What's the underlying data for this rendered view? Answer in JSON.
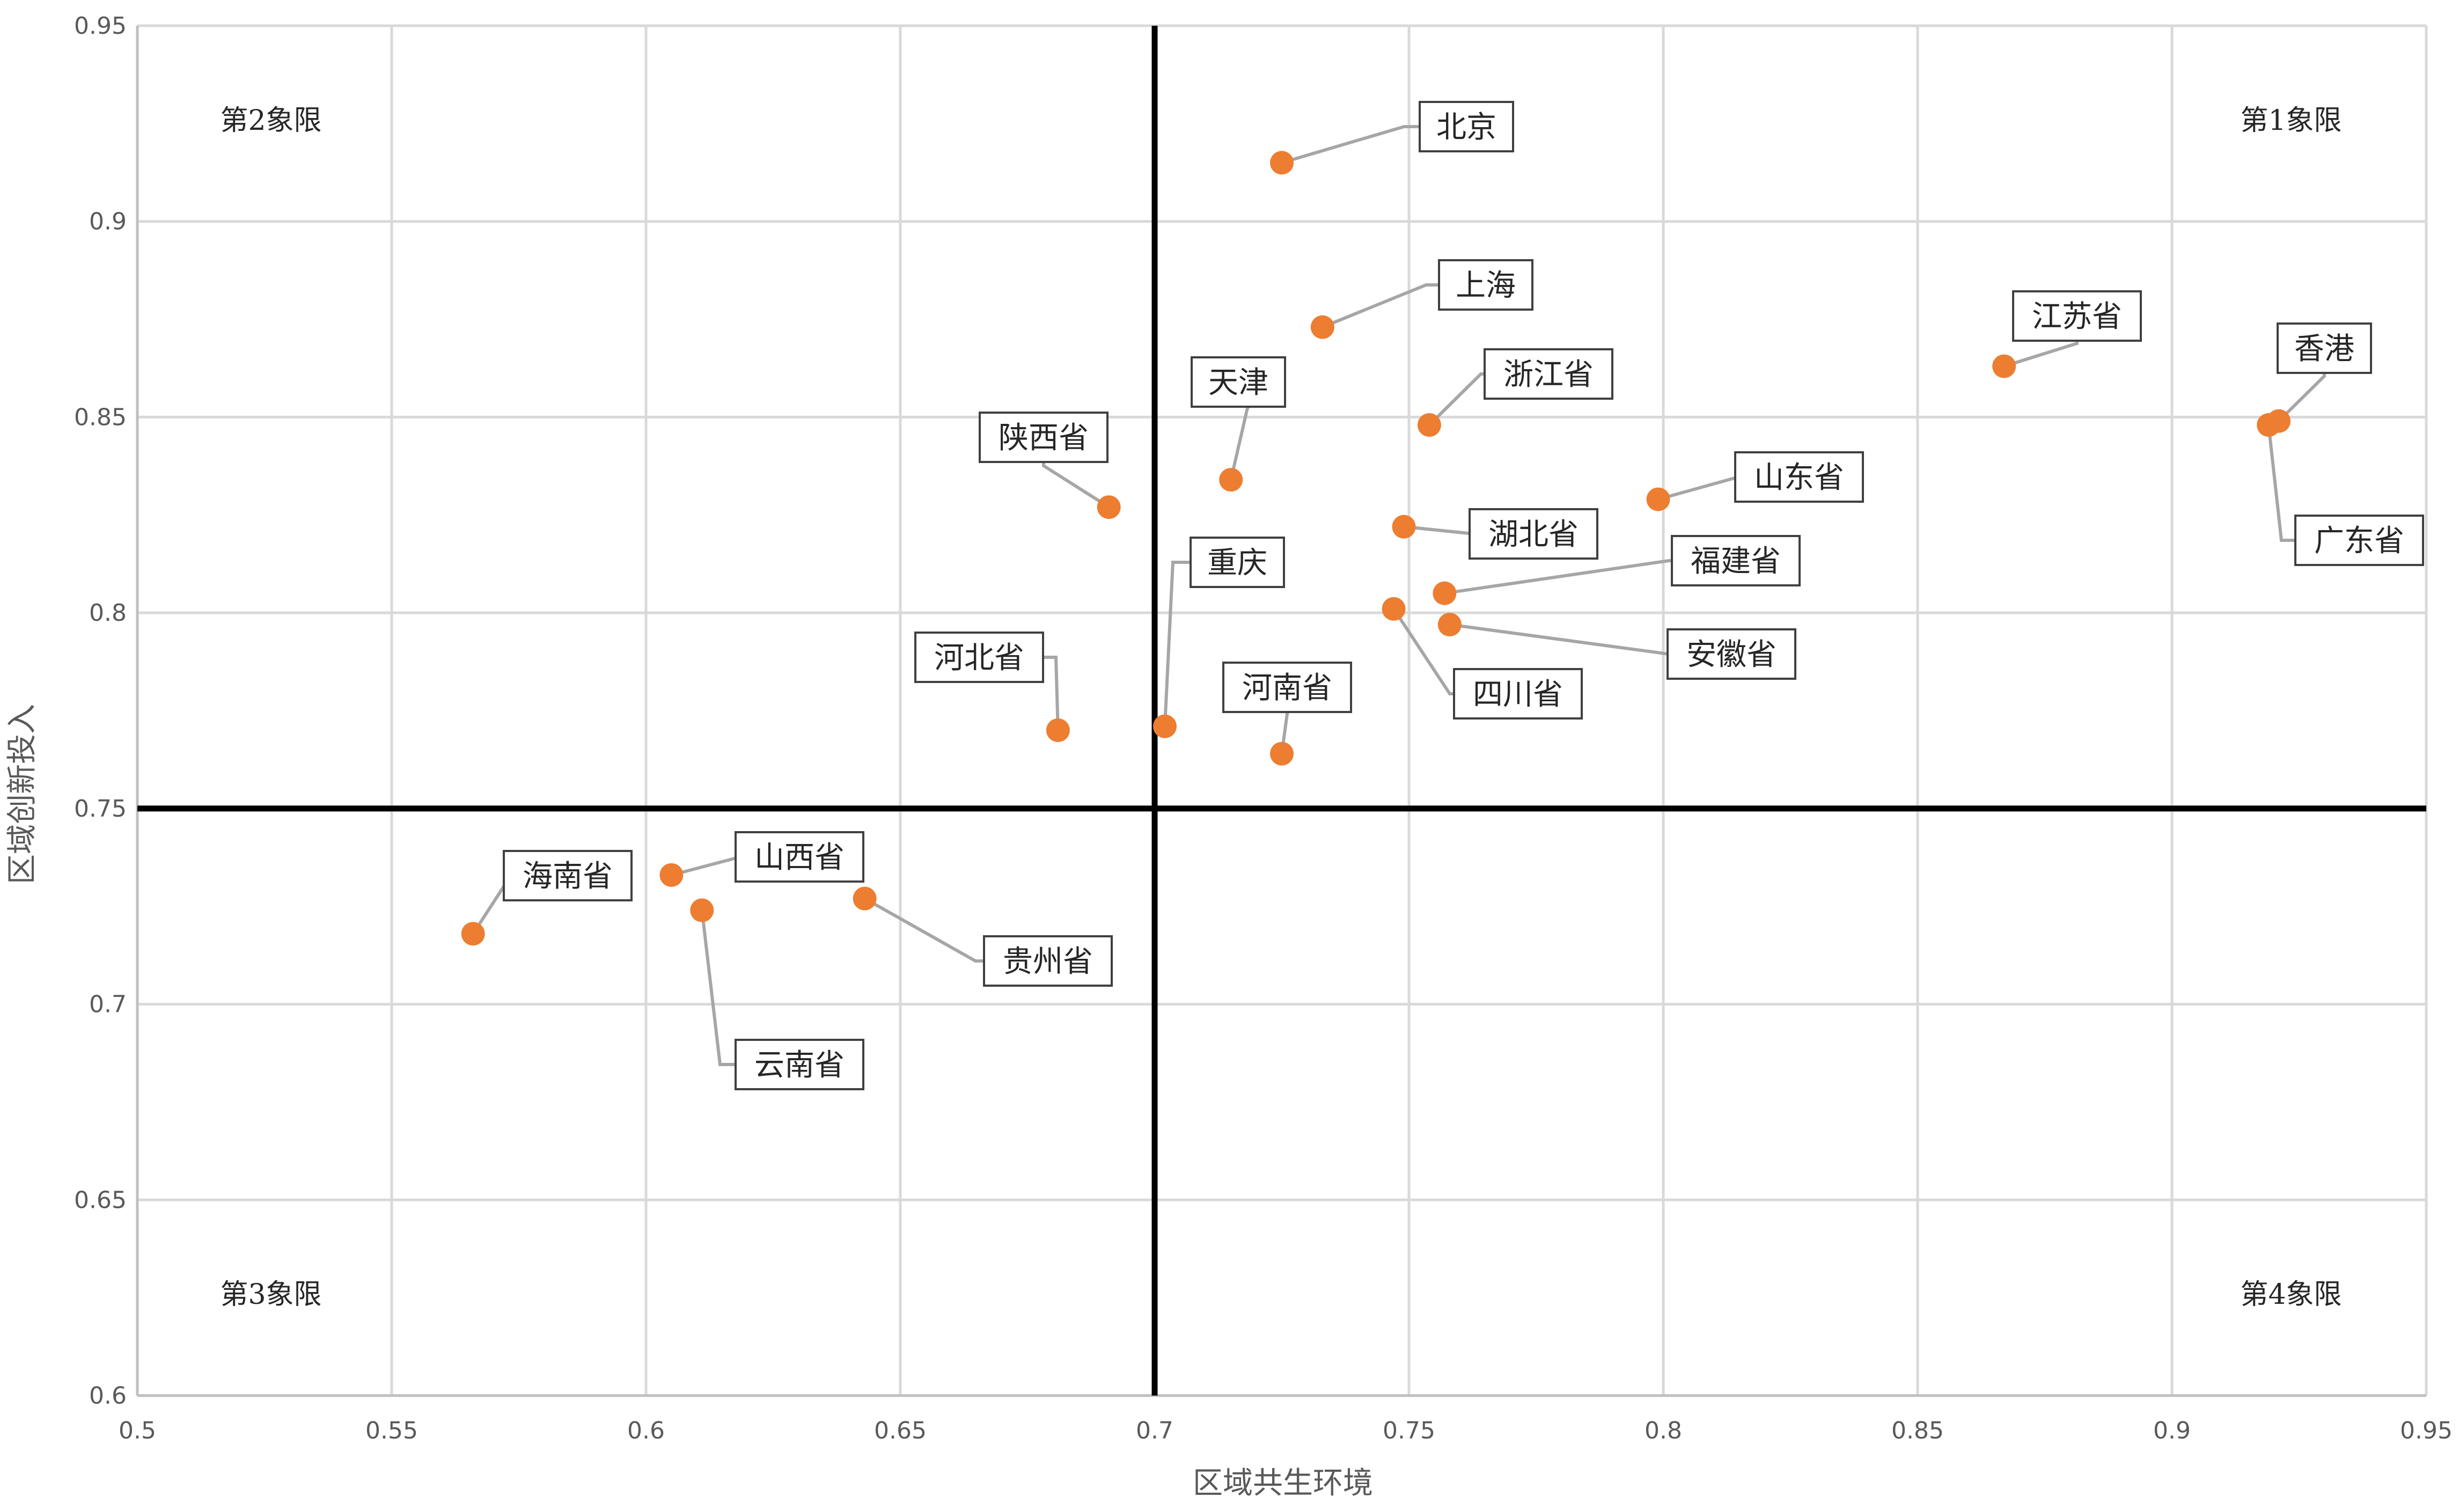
{
  "chart_data": {
    "type": "scatter",
    "xlabel": "区域共生环境",
    "ylabel": "区域创新投入",
    "xlim": [
      0.5,
      0.95
    ],
    "ylim": [
      0.6,
      0.95
    ],
    "xticks": [
      "0.5",
      "0.55",
      "0.6",
      "0.65",
      "0.7",
      "0.75",
      "0.8",
      "0.85",
      "0.9",
      "0.95"
    ],
    "yticks": [
      "0.6",
      "0.65",
      "0.7",
      "0.75",
      "0.8",
      "0.85",
      "0.9",
      "0.95"
    ],
    "grid": true,
    "quadrant_divider": {
      "x": 0.7,
      "y": 0.75
    },
    "quadrant_labels": {
      "q1": "第1象限",
      "q2": "第2象限",
      "q3": "第3象限",
      "q4": "第4象限"
    },
    "colors": {
      "point": "#ED7D31",
      "grid": "#D9D9D9",
      "divider": "#000000",
      "leader": "#A6A6A6"
    },
    "points": [
      {
        "name": "北京",
        "x": 0.725,
        "y": 0.915
      },
      {
        "name": "上海",
        "x": 0.733,
        "y": 0.873
      },
      {
        "name": "天津",
        "x": 0.715,
        "y": 0.834
      },
      {
        "name": "浙江省",
        "x": 0.754,
        "y": 0.848
      },
      {
        "name": "陕西省",
        "x": 0.691,
        "y": 0.827
      },
      {
        "name": "湖北省",
        "x": 0.749,
        "y": 0.822
      },
      {
        "name": "山东省",
        "x": 0.799,
        "y": 0.829
      },
      {
        "name": "江苏省",
        "x": 0.867,
        "y": 0.863
      },
      {
        "name": "香港",
        "x": 0.921,
        "y": 0.849
      },
      {
        "name": "广东省",
        "x": 0.919,
        "y": 0.848
      },
      {
        "name": "福建省",
        "x": 0.757,
        "y": 0.805
      },
      {
        "name": "重庆",
        "x": 0.702,
        "y": 0.771
      },
      {
        "name": "河北省",
        "x": 0.681,
        "y": 0.77
      },
      {
        "name": "安徽省",
        "x": 0.758,
        "y": 0.797
      },
      {
        "name": "四川省",
        "x": 0.747,
        "y": 0.801
      },
      {
        "name": "河南省",
        "x": 0.725,
        "y": 0.764
      },
      {
        "name": "海南省",
        "x": 0.566,
        "y": 0.718
      },
      {
        "name": "山西省",
        "x": 0.605,
        "y": 0.733
      },
      {
        "name": "云南省",
        "x": 0.611,
        "y": 0.724
      },
      {
        "name": "贵州省",
        "x": 0.643,
        "y": 0.727
      }
    ]
  }
}
